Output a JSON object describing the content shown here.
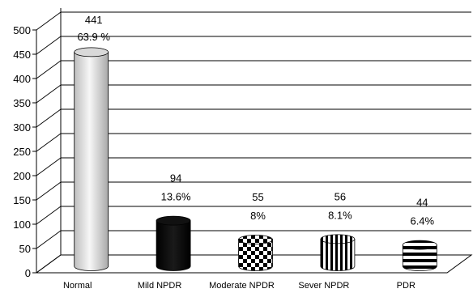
{
  "chart_data": {
    "type": "bar",
    "style": "3d-cylinder",
    "categories": [
      "Normal",
      "Mild NPDR",
      "Moderate NPDR",
      "Sever NPDR",
      "PDR"
    ],
    "values": [
      441,
      94,
      55,
      56,
      44
    ],
    "percent_labels": [
      "63.9 %",
      "13.6%",
      "8%",
      "8.1%",
      "6.4%"
    ],
    "value_labels": [
      "441",
      "94",
      "55",
      "56",
      "44"
    ],
    "patterns": [
      "light-gray-gradient",
      "solid-black",
      "checkerboard",
      "vertical-stripes",
      "horizontal-stripes"
    ],
    "ylim": [
      0,
      500
    ],
    "yticks": [
      0,
      50,
      100,
      150,
      200,
      250,
      300,
      350,
      400,
      450,
      500
    ],
    "grid": true,
    "legend": "none"
  }
}
